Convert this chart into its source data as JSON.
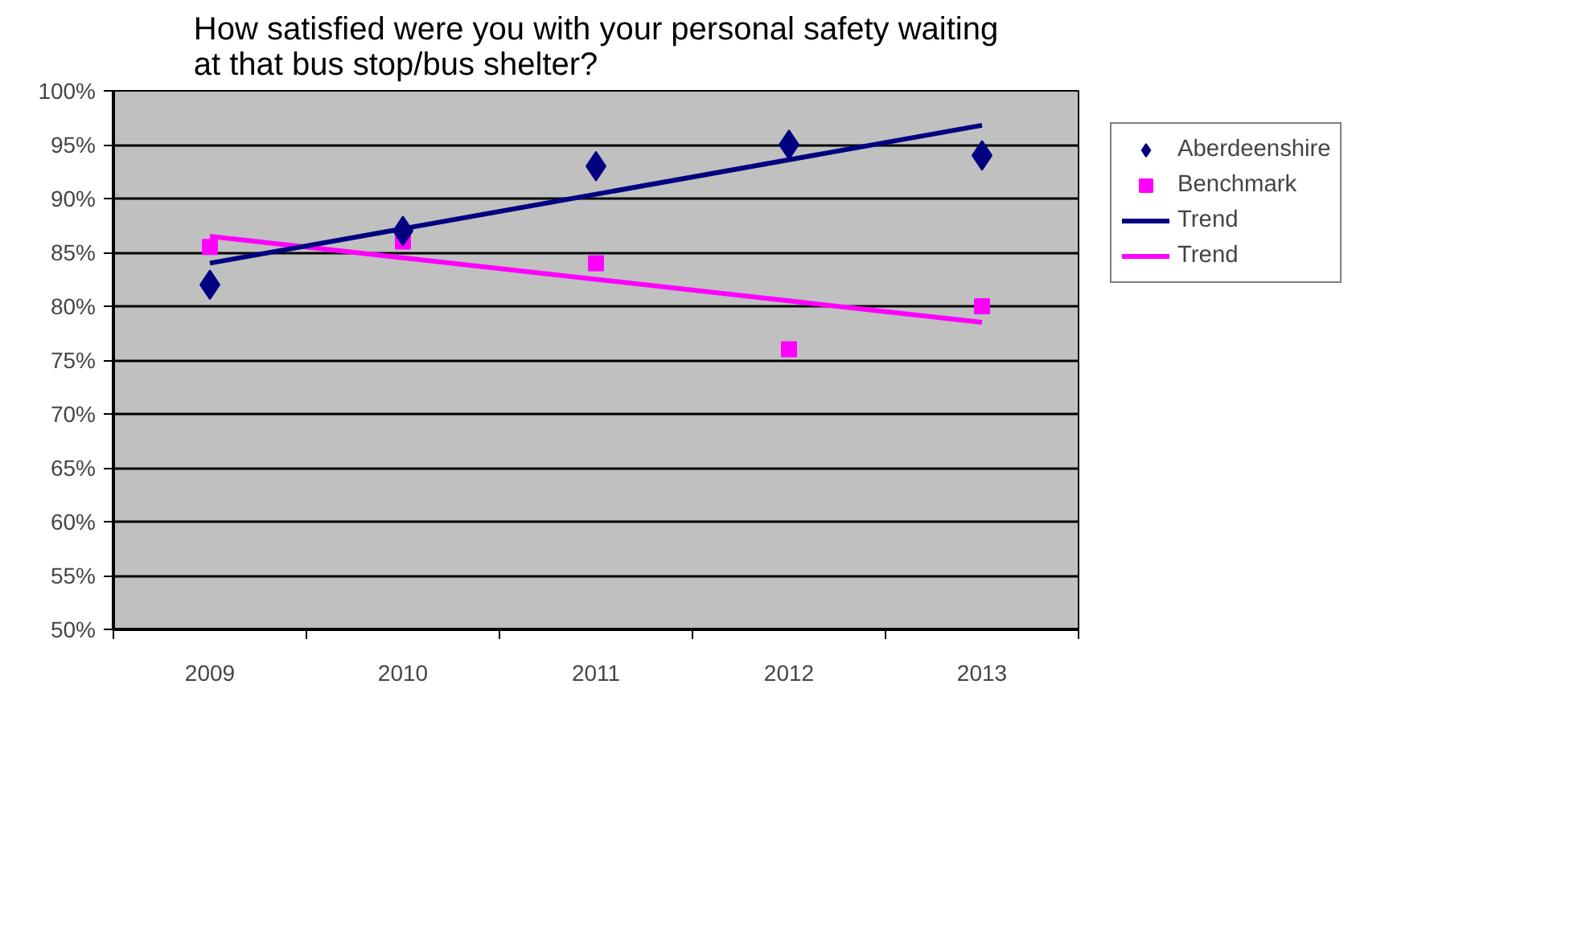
{
  "chart_data": {
    "type": "scatter",
    "title": "How satisfied were you with your personal safety waiting at that bus stop/bus shelter?",
    "categories": [
      "2009",
      "2010",
      "2011",
      "2012",
      "2013"
    ],
    "series": [
      {
        "name": "Aberdeenshire",
        "color": "#000080",
        "marker": "diamond",
        "values": [
          82,
          87,
          93,
          95,
          94
        ]
      },
      {
        "name": "Benchmark",
        "color": "#ff00ff",
        "marker": "square",
        "values": [
          85.5,
          86,
          84,
          76,
          80
        ]
      },
      {
        "name": "Trend",
        "type": "line",
        "color": "#000080",
        "values": [
          84,
          87.2,
          90.4,
          93.6,
          96.8
        ]
      },
      {
        "name": "Trend",
        "type": "line",
        "color": "#ff00ff",
        "values": [
          86.5,
          84.5,
          82.5,
          80.5,
          78.5
        ]
      }
    ],
    "ylim": [
      50,
      100
    ],
    "yticks": [
      {
        "value": 50,
        "label": "50%"
      },
      {
        "value": 55,
        "label": "55%"
      },
      {
        "value": 60,
        "label": "60%"
      },
      {
        "value": 65,
        "label": "65%"
      },
      {
        "value": 70,
        "label": "70%"
      },
      {
        "value": 75,
        "label": "75%"
      },
      {
        "value": 80,
        "label": "80%"
      },
      {
        "value": 85,
        "label": "85%"
      },
      {
        "value": 90,
        "label": "90%"
      },
      {
        "value": 95,
        "label": "95%"
      },
      {
        "value": 100,
        "label": "100%"
      }
    ],
    "grid": "y",
    "legend": "right"
  }
}
